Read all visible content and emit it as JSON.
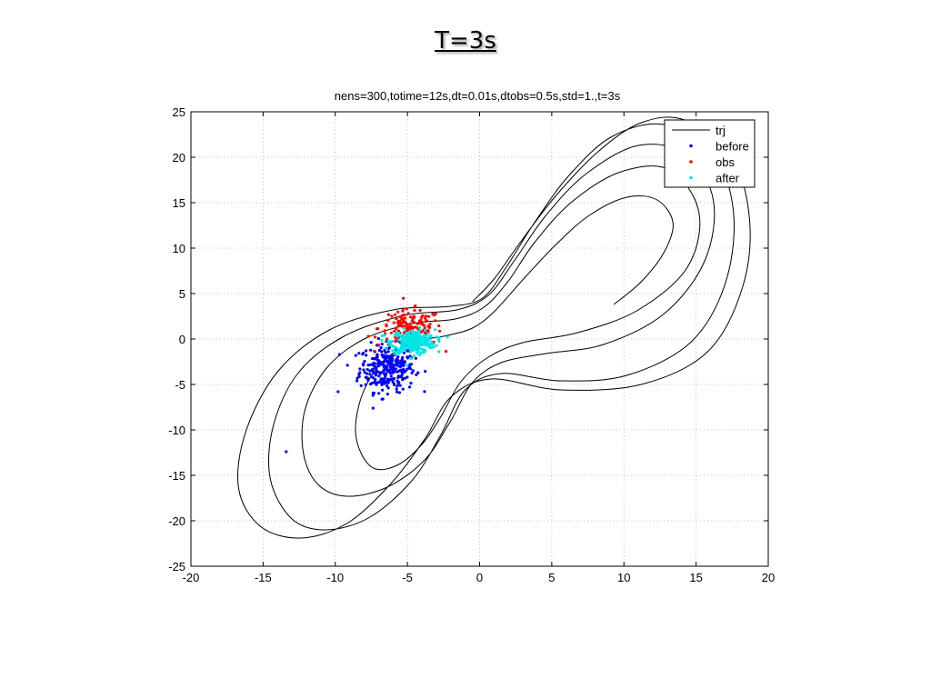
{
  "slide": {
    "title": "T=3s"
  },
  "chart_data": {
    "type": "scatter",
    "title": "nens=300,totime=12s,dt=0.01s,dtobs=0.5s,std=1.,t=3s",
    "xlabel": "",
    "ylabel": "",
    "xlim": [
      -20,
      20
    ],
    "ylim": [
      -25,
      25
    ],
    "xticks": [
      -20,
      -15,
      -10,
      -5,
      0,
      5,
      10,
      15,
      20
    ],
    "yticks": [
      25,
      20,
      15,
      10,
      5,
      0,
      -5,
      -10,
      -15,
      -20,
      -25
    ],
    "grid": true,
    "legend_position": "top-right",
    "series": [
      {
        "name": "trj",
        "kind": "line",
        "color": "#000000",
        "points": [
          [
            9.3,
            3.8
          ],
          [
            11.2,
            6.3
          ],
          [
            12.8,
            9.6
          ],
          [
            13.4,
            12.8
          ],
          [
            12.3,
            15.3
          ],
          [
            10.2,
            15.6
          ],
          [
            7.6,
            13.6
          ],
          [
            5.3,
            10.4
          ],
          [
            3.1,
            6.7
          ],
          [
            1.0,
            3.0
          ],
          [
            -0.5,
            1.2
          ],
          [
            -2.2,
            0.4
          ],
          [
            -4.6,
            -0.4
          ],
          [
            -6.8,
            -2.6
          ],
          [
            -8.1,
            -6.0
          ],
          [
            -8.6,
            -9.8
          ],
          [
            -8.2,
            -12.6
          ],
          [
            -7.2,
            -14.3
          ],
          [
            -5.6,
            -13.8
          ],
          [
            -4.0,
            -11.6
          ],
          [
            -2.7,
            -8.6
          ],
          [
            -1.3,
            -4.7
          ],
          [
            0.6,
            -2.0
          ],
          [
            3.0,
            -0.4
          ],
          [
            6.8,
            0.7
          ],
          [
            11.0,
            3.2
          ],
          [
            14.4,
            7.9
          ],
          [
            15.2,
            13.9
          ],
          [
            13.2,
            18.6
          ],
          [
            9.8,
            18.4
          ],
          [
            6.4,
            15.1
          ],
          [
            3.8,
            10.6
          ],
          [
            2.0,
            6.4
          ],
          [
            0.3,
            3.5
          ],
          [
            -1.7,
            2.2
          ],
          [
            -4.6,
            1.7
          ],
          [
            -8.0,
            0.0
          ],
          [
            -10.6,
            -3.2
          ],
          [
            -12.1,
            -7.8
          ],
          [
            -12.2,
            -12.6
          ],
          [
            -11.2,
            -16.0
          ],
          [
            -9.2,
            -17.3
          ],
          [
            -6.4,
            -16.3
          ],
          [
            -3.8,
            -13.3
          ],
          [
            -2.0,
            -9.0
          ],
          [
            -0.5,
            -4.8
          ],
          [
            1.5,
            -2.6
          ],
          [
            4.6,
            -1.6
          ],
          [
            8.6,
            -0.6
          ],
          [
            12.8,
            2.8
          ],
          [
            15.6,
            8.6
          ],
          [
            16.2,
            15.2
          ],
          [
            14.4,
            20.3
          ],
          [
            11.0,
            21.3
          ],
          [
            7.4,
            18.2
          ],
          [
            4.6,
            13.6
          ],
          [
            2.4,
            8.6
          ],
          [
            0.6,
            4.8
          ],
          [
            -1.6,
            3.2
          ],
          [
            -5.2,
            2.6
          ],
          [
            -9.4,
            0.3
          ],
          [
            -12.6,
            -3.8
          ],
          [
            -14.3,
            -9.6
          ],
          [
            -14.5,
            -15.4
          ],
          [
            -13.0,
            -19.8
          ],
          [
            -10.6,
            -21.0
          ],
          [
            -7.6,
            -19.6
          ],
          [
            -4.7,
            -15.6
          ],
          [
            -2.7,
            -10.6
          ],
          [
            -1.0,
            -5.6
          ],
          [
            1.5,
            -3.8
          ],
          [
            5.6,
            -4.6
          ],
          [
            10.2,
            -4.0
          ],
          [
            14.6,
            -0.4
          ],
          [
            17.0,
            6.0
          ],
          [
            17.6,
            13.8
          ],
          [
            16.2,
            20.4
          ],
          [
            12.8,
            23.6
          ],
          [
            9.2,
            22.3
          ],
          [
            6.2,
            18.0
          ],
          [
            3.8,
            12.8
          ],
          [
            1.8,
            7.8
          ],
          [
            0.2,
            4.5
          ],
          [
            -2.0,
            3.6
          ],
          [
            -6.0,
            3.2
          ],
          [
            -10.4,
            1.0
          ],
          [
            -14.0,
            -3.6
          ],
          [
            -16.2,
            -10.2
          ],
          [
            -16.7,
            -16.4
          ],
          [
            -15.2,
            -20.6
          ],
          [
            -12.4,
            -21.9
          ],
          [
            -9.2,
            -20.3
          ],
          [
            -6.2,
            -16.0
          ],
          [
            -3.8,
            -11.0
          ],
          [
            -2.0,
            -6.4
          ],
          [
            0.8,
            -4.4
          ],
          [
            5.6,
            -5.6
          ],
          [
            11.2,
            -5.0
          ],
          [
            15.8,
            -1.4
          ],
          [
            18.2,
            5.6
          ],
          [
            18.7,
            13.2
          ],
          [
            17.4,
            20.4
          ],
          [
            14.2,
            24.1
          ],
          [
            11.2,
            23.8
          ],
          [
            8.2,
            20.6
          ],
          [
            5.2,
            15.6
          ],
          [
            2.8,
            10.6
          ],
          [
            1.0,
            6.6
          ],
          [
            -0.5,
            4.1
          ]
        ]
      },
      {
        "name": "before",
        "kind": "points",
        "color": "#0000ff",
        "center": [
          -6.4,
          -3.2
        ],
        "spread": [
          0.95,
          1.3
        ],
        "count": 300,
        "outliers": [
          [
            -13.4,
            -12.4
          ],
          [
            -9.8,
            -5.8
          ],
          [
            -8.5,
            -4.6
          ]
        ]
      },
      {
        "name": "obs",
        "kind": "points",
        "color": "#ff0000",
        "center": [
          -4.8,
          1.2
        ],
        "spread": [
          1.1,
          1.0
        ],
        "count": 150,
        "outliers": []
      },
      {
        "name": "after",
        "kind": "points",
        "color": "#00e5e5",
        "center": [
          -4.6,
          -0.3
        ],
        "spread": [
          0.75,
          0.65
        ],
        "count": 300,
        "outliers": []
      }
    ]
  }
}
